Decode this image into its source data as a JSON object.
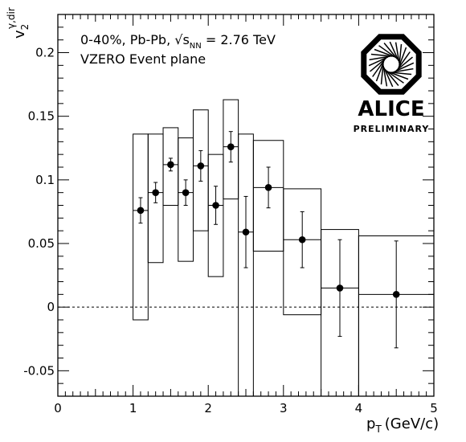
{
  "chart_data": {
    "type": "scatter",
    "ylabel_main": "v",
    "ylabel_sup": "γ,dir",
    "ylabel_sub": "2",
    "xlabel_main": "p",
    "xlabel_sub": "T",
    "xlabel_unit": "(GeV/c)",
    "xlim": [
      0,
      5
    ],
    "ylim": [
      -0.07,
      0.23
    ],
    "x_ticks": [
      {
        "value": 0,
        "label": "0"
      },
      {
        "value": 1,
        "label": "1"
      },
      {
        "value": 2,
        "label": "2"
      },
      {
        "value": 3,
        "label": "3"
      },
      {
        "value": 4,
        "label": "4"
      },
      {
        "value": 5,
        "label": "5"
      }
    ],
    "y_ticks": [
      {
        "value": -0.05,
        "label": "-0.05"
      },
      {
        "value": 0,
        "label": "0"
      },
      {
        "value": 0.05,
        "label": "0.05"
      },
      {
        "value": 0.1,
        "label": "0.1"
      },
      {
        "value": 0.15,
        "label": "0.15"
      },
      {
        "value": 0.2,
        "label": "0.2"
      }
    ],
    "reference_line": 0,
    "annotation_line1_a": "0-40%, Pb-Pb, ",
    "annotation_line1_sqrt": "√",
    "annotation_line1_s": "s",
    "annotation_line1_sub": "NN",
    "annotation_line1_b": " = 2.76 TeV",
    "annotation_line2": "VZERO Event plane",
    "logo_text": "ALICE",
    "logo_subtext": "PRELIMINARY",
    "points": [
      {
        "x": 1.1,
        "xlo": 1.0,
        "xhi": 1.2,
        "y": 0.076,
        "stat": 0.01,
        "sys_lo": -0.01,
        "sys_hi": 0.136
      },
      {
        "x": 1.3,
        "xlo": 1.2,
        "xhi": 1.4,
        "y": 0.09,
        "stat": 0.008,
        "sys_lo": 0.035,
        "sys_hi": 0.136
      },
      {
        "x": 1.5,
        "xlo": 1.4,
        "xhi": 1.6,
        "y": 0.112,
        "stat": 0.005,
        "sys_lo": 0.08,
        "sys_hi": 0.141
      },
      {
        "x": 1.7,
        "xlo": 1.6,
        "xhi": 1.8,
        "y": 0.09,
        "stat": 0.01,
        "sys_lo": 0.036,
        "sys_hi": 0.133
      },
      {
        "x": 1.9,
        "xlo": 1.8,
        "xhi": 2.0,
        "y": 0.111,
        "stat": 0.012,
        "sys_lo": 0.06,
        "sys_hi": 0.155
      },
      {
        "x": 2.1,
        "xlo": 2.0,
        "xhi": 2.2,
        "y": 0.08,
        "stat": 0.015,
        "sys_lo": 0.024,
        "sys_hi": 0.12
      },
      {
        "x": 2.3,
        "xlo": 2.2,
        "xhi": 2.4,
        "y": 0.126,
        "stat": 0.012,
        "sys_lo": 0.085,
        "sys_hi": 0.163
      },
      {
        "x": 2.5,
        "xlo": 2.4,
        "xhi": 2.6,
        "y": 0.059,
        "stat": 0.028,
        "sys_lo": -0.07,
        "sys_hi": 0.136
      },
      {
        "x": 2.8,
        "xlo": 2.6,
        "xhi": 3.0,
        "y": 0.094,
        "stat": 0.016,
        "sys_lo": 0.044,
        "sys_hi": 0.131
      },
      {
        "x": 3.25,
        "xlo": 3.0,
        "xhi": 3.5,
        "y": 0.053,
        "stat": 0.022,
        "sys_lo": -0.006,
        "sys_hi": 0.093
      },
      {
        "x": 3.75,
        "xlo": 3.5,
        "xhi": 4.0,
        "y": 0.015,
        "stat": 0.038,
        "sys_lo": -0.07,
        "sys_hi": 0.061
      },
      {
        "x": 4.5,
        "xlo": 4.0,
        "xhi": 5.0,
        "y": 0.01,
        "stat": 0.042,
        "sys_lo": -0.07,
        "sys_hi": 0.056
      }
    ]
  }
}
